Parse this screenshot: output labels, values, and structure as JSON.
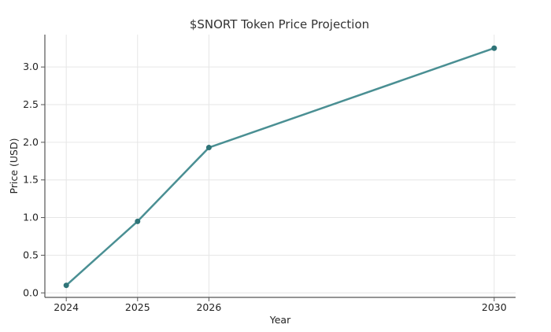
{
  "chart_data": {
    "type": "line",
    "title": "$SNORT Token Price Projection",
    "xlabel": "Year",
    "ylabel": "Price (USD)",
    "x": [
      2024,
      2025,
      2026,
      2030
    ],
    "x_tick_labels": [
      "2024",
      "2025",
      "2026",
      "2030"
    ],
    "y_ticks": [
      0.0,
      0.5,
      1.0,
      1.5,
      2.0,
      2.5,
      3.0
    ],
    "y_tick_labels": [
      "0.0",
      "0.5",
      "1.0",
      "1.5",
      "2.0",
      "2.5",
      "3.0"
    ],
    "series": [
      {
        "values": [
          0.1,
          0.95,
          1.93,
          3.25
        ]
      }
    ],
    "xlim": [
      2023.7,
      2030.3
    ],
    "ylim": [
      -0.06,
      3.43
    ],
    "grid": true,
    "colors": {
      "line": "#4a8f93",
      "marker": "#2f7478"
    }
  }
}
